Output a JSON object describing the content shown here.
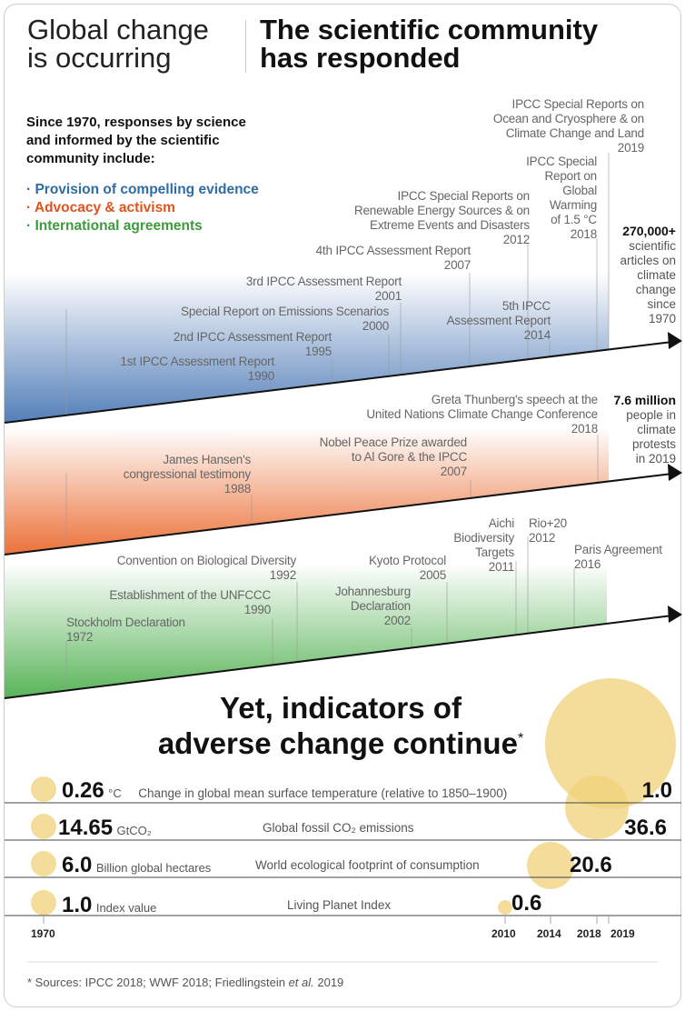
{
  "header": {
    "left_line1": "Global change",
    "left_line2": "is occurring",
    "right_line1": "The scientific community",
    "right_line2": "has responded"
  },
  "intro": {
    "text_line1": "Since 1970, responses by science",
    "text_line2": "and informed by the scientific",
    "text_line3": "community include:",
    "bullets": [
      {
        "label": "· Provision of compelling evidence",
        "color": "#2e6da4"
      },
      {
        "label": "· Advocacy & activism",
        "color": "#e2521d"
      },
      {
        "label": "· International agreements",
        "color": "#3d9a3d"
      }
    ]
  },
  "science": {
    "color": "#4a78b5",
    "events": [
      {
        "title": "1st IPCC Assessment Report",
        "year": "1990"
      },
      {
        "title": "2nd IPCC Assessment Report",
        "year": "1995"
      },
      {
        "title": "Special Report on Emissions Scenarios",
        "year": "2000"
      },
      {
        "title": "3rd IPCC Assessment Report",
        "year": "2001"
      },
      {
        "title": "4th IPCC Assessment Report",
        "year": "2007"
      },
      {
        "title_line1": "IPCC Special Reports on",
        "title_line2": "Renewable Energy Sources & on",
        "title_line3": "Extreme Events and Disasters",
        "year": "2012"
      },
      {
        "title_line1": "5th IPCC",
        "title_line2": "Assessment Report",
        "year": "2014"
      },
      {
        "title_line1": "IPCC Special",
        "title_line2": "Report on",
        "title_line3": "Global",
        "title_line4": "Warming",
        "title_line5": "of 1.5 °C",
        "year": "2018"
      },
      {
        "title_line1": "IPCC Special Reports on",
        "title_line2": "Ocean and Cryosphere & on",
        "title_line3": "Climate Change and Land",
        "year": "2019"
      }
    ],
    "stat_value": "270,000+",
    "stat_lines": [
      "scientific",
      "articles on",
      "climate",
      "change",
      "since",
      "1970"
    ]
  },
  "activism": {
    "color": "#ea6a2e",
    "events": [
      {
        "title_line1": "James Hansen's",
        "title_line2": "congressional testimony",
        "year": "1988"
      },
      {
        "title_line1": "Nobel Peace Prize awarded",
        "title_line2": "to Al Gore & the IPCC",
        "year": "2007"
      },
      {
        "title_line1": "Greta Thunberg's speech at the",
        "title_line2": "United Nations Climate Change Conference",
        "year": "2018"
      }
    ],
    "stat_value": "7.6 million",
    "stat_lines": [
      "people in",
      "climate",
      "protests",
      "in 2019"
    ]
  },
  "agreements": {
    "color": "#4fb04f",
    "events": [
      {
        "title": "Stockholm Declaration",
        "year": "1972"
      },
      {
        "title": "Establishment of the UNFCCC",
        "year": "1990"
      },
      {
        "title": "Convention on Biological Diversity",
        "year": "1992"
      },
      {
        "title_line1": "Johannesburg",
        "title_line2": "Declaration",
        "year": "2002"
      },
      {
        "title": "Kyoto Protocol",
        "year": "2005"
      },
      {
        "title_line1": "Aichi",
        "title_line2": "Biodiversity",
        "title_line3": "Targets",
        "year": "2011"
      },
      {
        "title": "Rio+20",
        "year": "2012"
      },
      {
        "title": "Paris Agreement",
        "year": "2016"
      }
    ]
  },
  "indicators": {
    "title_line1": "Yet, indicators of",
    "title_line2": "adverse change continue",
    "asterisk": "*",
    "bubble_color": "#f0d27a",
    "rows": [
      {
        "start": "0.26",
        "unit": "°C",
        "label": "Change in global mean surface temperature (relative to 1850–1900)",
        "end": "1.0",
        "end_year": "2019"
      },
      {
        "start": "14.65",
        "unit": "GtCO₂",
        "label": "Global fossil CO₂ emissions",
        "end": "36.6",
        "end_year": "2018"
      },
      {
        "start": "6.0",
        "unit": "Billion global hectares",
        "label": "World ecological footprint of consumption",
        "end": "20.6",
        "end_year": "2014"
      },
      {
        "start": "1.0",
        "unit": "Index value",
        "label": "Living Planet Index",
        "end": "0.6",
        "end_year": "2010"
      }
    ],
    "years": [
      "1970",
      "2010",
      "2014",
      "2018",
      "2019"
    ]
  },
  "footer": {
    "prefix": "* Sources: IPCC  2018; WWF 2018; Friedlingstein ",
    "italic": "et al.",
    "suffix": " 2019"
  }
}
